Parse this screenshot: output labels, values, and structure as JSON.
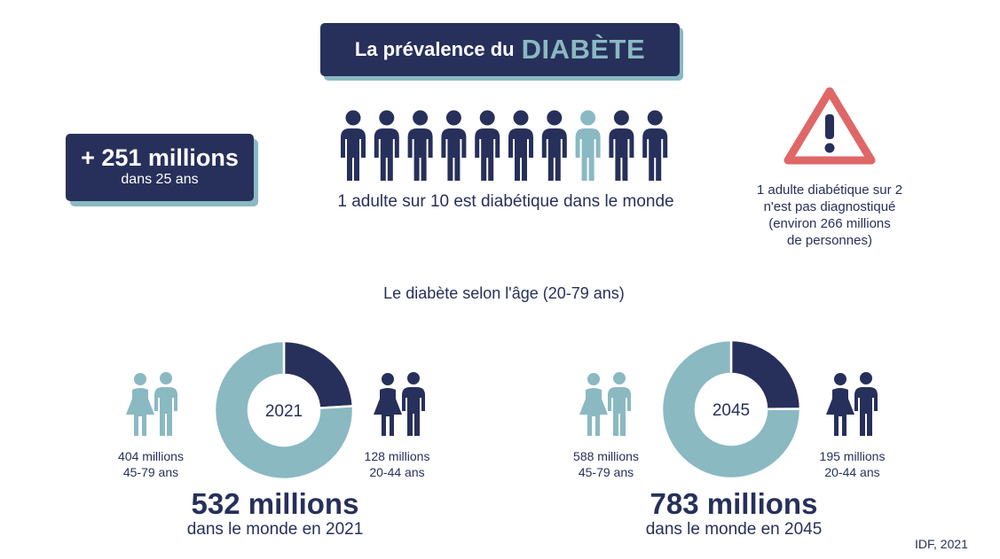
{
  "header": {
    "title_main": "La prévalence du",
    "title_accent": "DIABÈTE"
  },
  "growth": {
    "value": "+ 251 millions",
    "subtitle": "dans 25 ans"
  },
  "prevalence": {
    "text": "1 adulte sur 10 est diabétique dans le monde",
    "highlighted_index": 7,
    "total_people": 10
  },
  "undiagnosed": {
    "text": "1 adulte diabétique sur 2\nn'est pas diagnostiqué\n(environ 266 millions\nde personnes)",
    "icon": "warning-triangle-icon"
  },
  "age_section": {
    "heading": "Le diabète selon l'âge (20-79 ans)"
  },
  "colors": {
    "navy": "#27305a",
    "teal": "#8ab9c2",
    "red": "#df6767",
    "white": "#ffffff"
  },
  "chart_data": [
    {
      "type": "pie",
      "center_label": "2021",
      "categories": [
        "45-79 ans",
        "20-44 ans"
      ],
      "values": [
        404,
        128
      ],
      "unit": "millions",
      "labels": [
        "404 millions\n45-79 ans",
        "128 millions\n20-44 ans"
      ],
      "colors": [
        "#8ab9c2",
        "#27305a"
      ],
      "total_label": "532 millions",
      "total_sub": "dans le monde en 2021"
    },
    {
      "type": "pie",
      "center_label": "2045",
      "categories": [
        "45-79 ans",
        "20-44 ans"
      ],
      "values": [
        588,
        195
      ],
      "unit": "millions",
      "labels": [
        "588 millions\n45-79 ans",
        "195 millions\n20-44 ans"
      ],
      "colors": [
        "#8ab9c2",
        "#27305a"
      ],
      "total_label": "783 millions",
      "total_sub": "dans le monde en 2045"
    }
  ],
  "source": "IDF, 2021"
}
